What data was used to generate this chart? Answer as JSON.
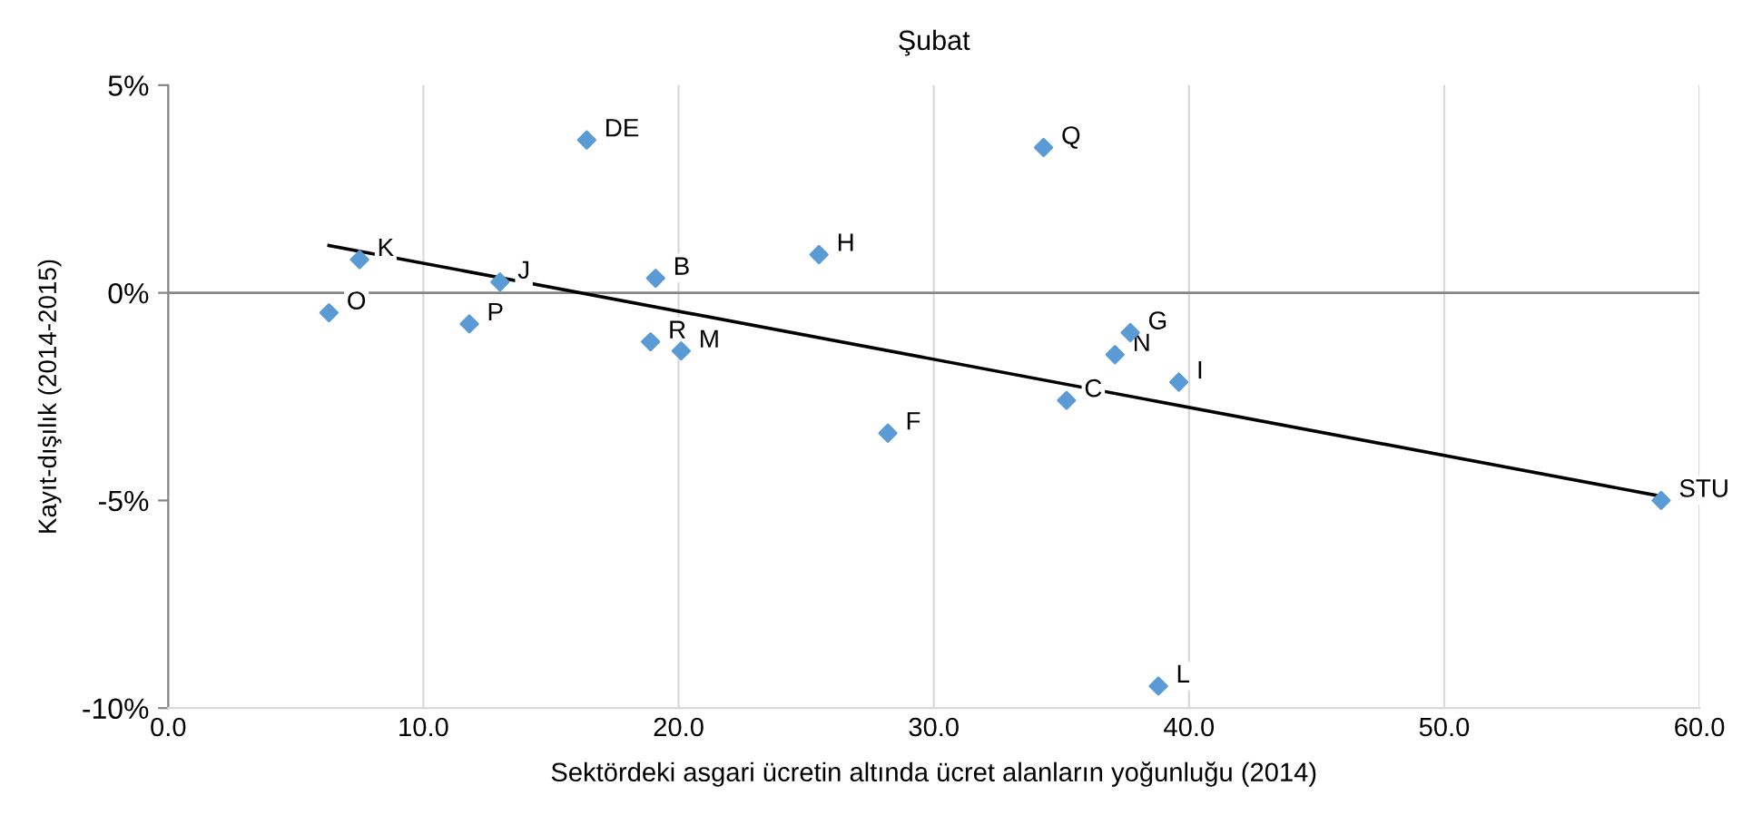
{
  "chart_data": {
    "type": "scatter",
    "title": "Şubat",
    "xlabel": "Sektördeki asgari ücretin altında ücret alanların yoğunluğu (2014)",
    "ylabel": "Kayıt-dışılık (2014-2015)",
    "xlim": [
      0,
      60
    ],
    "ylim": [
      -10,
      5
    ],
    "xticks": [
      {
        "value": 0,
        "label": "0.0"
      },
      {
        "value": 10,
        "label": "10.0"
      },
      {
        "value": 20,
        "label": "20.0"
      },
      {
        "value": 30,
        "label": "30.0"
      },
      {
        "value": 40,
        "label": "40.0"
      },
      {
        "value": 50,
        "label": "50.0"
      },
      {
        "value": 60,
        "label": "60.0"
      }
    ],
    "yticks": [
      {
        "value": -10,
        "label": "-10%"
      },
      {
        "value": -5,
        "label": "-5%"
      },
      {
        "value": 0,
        "label": "0%"
      },
      {
        "value": 5,
        "label": "5%"
      }
    ],
    "grid": "x",
    "marker": "diamond",
    "series": [
      {
        "color": "#5b9bd5",
        "x": [
          16.4,
          34.3,
          7.5,
          13.0,
          19.1,
          25.5,
          6.3,
          11.8,
          18.9,
          20.1,
          37.7,
          37.1,
          39.6,
          35.2,
          28.2,
          58.5,
          38.8
        ],
        "values": [
          3.68,
          3.5,
          0.8,
          0.26,
          0.35,
          0.92,
          -0.48,
          -0.75,
          -1.18,
          -1.4,
          -0.96,
          -1.49,
          -2.15,
          -2.59,
          -3.38,
          -5.0,
          -9.47
        ]
      },
      {
        "type": "line",
        "color": "#000000",
        "marker": "none",
        "line_style": "solid",
        "x": [
          6.3,
          58.5
        ],
        "values": [
          1.14,
          -4.9
        ]
      }
    ],
    "ref_lines": [
      {
        "axis": "y",
        "value": 0,
        "color": "#868686"
      }
    ],
    "annotations": [
      {
        "text": "DE",
        "x": 16.4,
        "y": 3.68
      },
      {
        "text": "Q",
        "x": 34.3,
        "y": 3.5
      },
      {
        "text": "K",
        "x": 7.5,
        "y": 0.8
      },
      {
        "text": "J",
        "x": 13.0,
        "y": 0.26
      },
      {
        "text": "B",
        "x": 19.1,
        "y": 0.35
      },
      {
        "text": "H",
        "x": 25.5,
        "y": 0.92
      },
      {
        "text": "O",
        "x": 6.3,
        "y": -0.48
      },
      {
        "text": "P",
        "x": 11.8,
        "y": -0.75
      },
      {
        "text": "R",
        "x": 18.9,
        "y": -1.18
      },
      {
        "text": "M",
        "x": 20.1,
        "y": -1.4
      },
      {
        "text": "G",
        "x": 37.7,
        "y": -0.96
      },
      {
        "text": "N",
        "x": 37.1,
        "y": -1.49
      },
      {
        "text": "I",
        "x": 39.6,
        "y": -2.15
      },
      {
        "text": "C",
        "x": 35.2,
        "y": -2.59
      },
      {
        "text": "F",
        "x": 28.2,
        "y": -3.38
      },
      {
        "text": "STU",
        "x": 58.5,
        "y": -5.0
      },
      {
        "text": "L",
        "x": 38.8,
        "y": -9.47
      }
    ]
  }
}
